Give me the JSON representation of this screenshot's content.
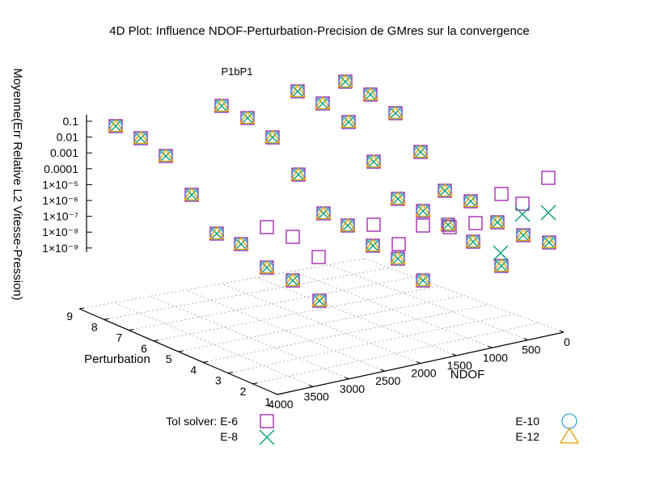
{
  "chart_data": {
    "type": "scatter",
    "title": "4D Plot: Influence NDOF-Perturbation-Precision de GMres sur la convergence",
    "subtitle": "P1bP1",
    "zlabel": "Moyenne(Err Relative L2 Vitesse-Pression)",
    "xlabel": "NDOF",
    "ylabel": "Perturbation",
    "x_ticks": [
      "0",
      "500",
      "1000",
      "1500",
      "2000",
      "2500",
      "3000",
      "3500",
      "4000"
    ],
    "y_ticks": [
      "1",
      "2",
      "3",
      "4",
      "5",
      "6",
      "7",
      "8",
      "9"
    ],
    "z_ticks": [
      "0.1",
      "0.01",
      "0.001",
      "0.0001",
      "1×10⁻⁵",
      "1×10⁻⁶",
      "1×10⁻⁷",
      "1×10⁻⁸",
      "1×10⁻⁹"
    ],
    "x_range": [
      0,
      4000
    ],
    "y_range": [
      1,
      9
    ],
    "z_scale": "log",
    "grid": "on (base plane)",
    "legend_left": {
      "title": "Tol solver: E-6",
      "entries": [
        "E-8"
      ]
    },
    "legend_right": {
      "entries": [
        "E-10",
        "E-12"
      ]
    },
    "series": [
      {
        "name": "E-6",
        "marker": "square",
        "color": "#9b1fa8"
      },
      {
        "name": "E-8",
        "marker": "cross",
        "color": "#009e73"
      },
      {
        "name": "E-10",
        "marker": "circle",
        "color": "#3aa6d6"
      },
      {
        "name": "E-12",
        "marker": "triangle",
        "color": "#e69f00"
      }
    ]
  },
  "markers": {
    "all_four": [
      [
        143,
        156
      ],
      [
        174,
        171
      ],
      [
        205,
        193
      ],
      [
        237,
        241
      ],
      [
        268,
        289
      ],
      [
        298,
        302
      ],
      [
        330,
        331
      ],
      [
        362,
        347
      ],
      [
        395,
        372
      ],
      [
        274,
        131
      ],
      [
        306,
        146
      ],
      [
        337,
        170
      ],
      [
        369,
        216
      ],
      [
        400,
        264
      ],
      [
        430,
        279
      ],
      [
        461,
        304
      ],
      [
        492,
        320
      ],
      [
        523,
        347
      ],
      [
        368,
        113
      ],
      [
        399,
        128
      ],
      [
        431,
        151
      ],
      [
        462,
        200
      ],
      [
        492,
        246
      ],
      [
        523,
        261
      ],
      [
        554,
        278
      ],
      [
        585,
        299
      ],
      [
        620,
        329
      ],
      [
        427,
        101
      ],
      [
        458,
        117
      ],
      [
        489,
        140
      ],
      [
        520,
        188
      ],
      [
        550,
        236
      ],
      [
        582,
        249
      ],
      [
        615,
        275
      ],
      [
        647,
        291
      ],
      [
        679,
        300
      ]
    ],
    "square_only": [
      [
        330,
        281
      ],
      [
        362,
        293
      ],
      [
        394,
        318
      ],
      [
        462,
        278
      ],
      [
        493,
        302
      ],
      [
        523,
        279
      ],
      [
        556,
        281
      ],
      [
        588,
        276
      ],
      [
        620,
        240
      ],
      [
        646,
        252
      ],
      [
        678,
        220
      ]
    ],
    "cross_only": [
      [
        646,
        265
      ],
      [
        678,
        263
      ],
      [
        619,
        313
      ]
    ]
  },
  "colors": {
    "square": "#9b1fa8",
    "cross": "#009e73",
    "circle": "#3aa6d6",
    "triangle": "#e69f00",
    "grid": "#a0a0a0"
  }
}
